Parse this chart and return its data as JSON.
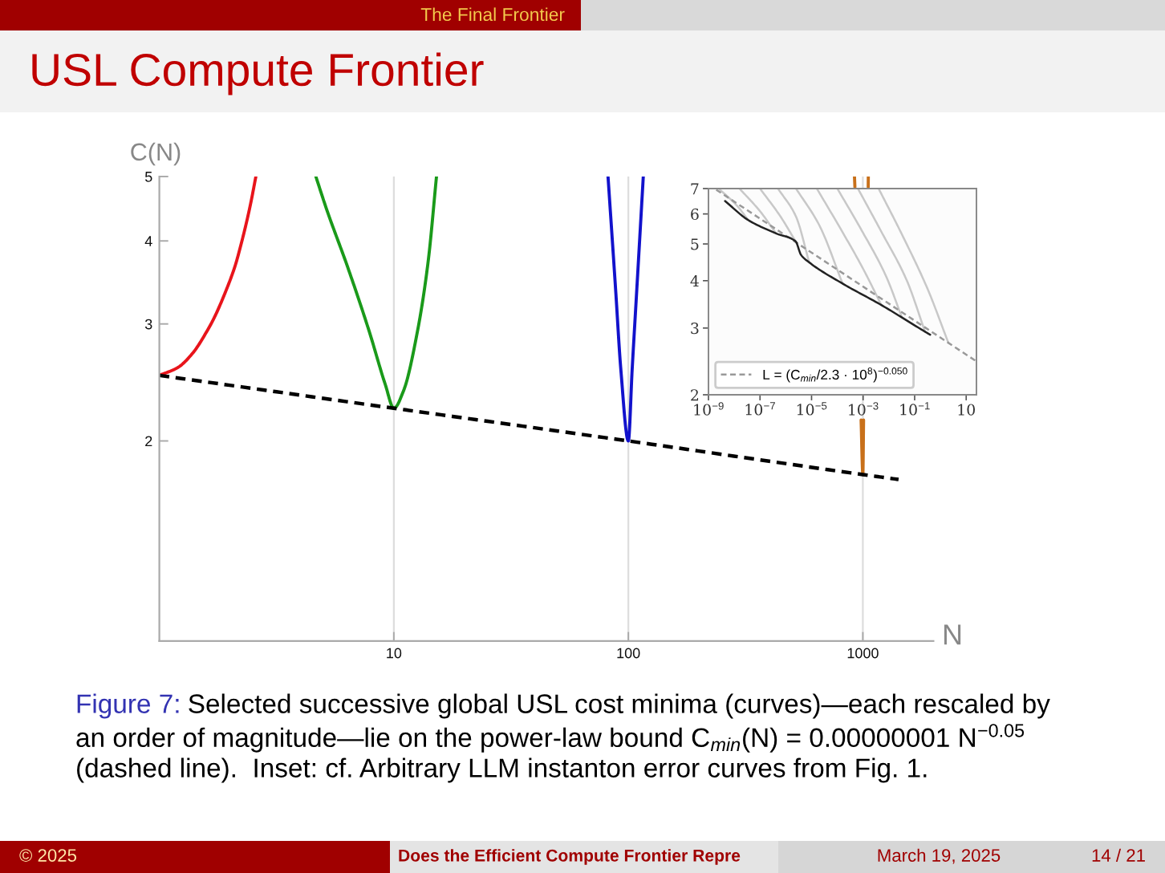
{
  "chart_data": [
    {
      "type": "line",
      "title": "USL Compute Frontier",
      "xlabel": "N",
      "ylabel": "C(N)",
      "log": "xy",
      "xlim": [
        1,
        2000
      ],
      "ylim": [
        1,
        5
      ],
      "xticks": [
        10,
        100,
        1000
      ],
      "yticks": [
        2,
        3,
        4,
        5
      ],
      "grid": "x",
      "series": [
        {
          "color": "#e8141b",
          "x": [
            1,
            1.2,
            1.386,
            1.6,
            1.71,
            1.9,
            2.11,
            2.2,
            2.34,
            2.45,
            2.58
          ],
          "values": [
            2.51,
            2.58,
            2.71,
            2.93,
            3.06,
            3.33,
            3.68,
            3.88,
            4.23,
            4.55,
            5
          ]
        },
        {
          "color": "#1a9a1a",
          "x": [
            4.65,
            5.16,
            6.36,
            7.86,
            9.2,
            10,
            11,
            12.6,
            14,
            15.2
          ],
          "values": [
            5,
            4.47,
            3.65,
            2.92,
            2.43,
            2.24,
            2.38,
            2.92,
            3.72,
            5
          ]
        },
        {
          "color": "#1212cc",
          "x": [
            81.9,
            88.2,
            92.9,
            100,
            103.8,
            108.7,
            115.8
          ],
          "values": [
            5,
            3.39,
            2.56,
            2,
            2.56,
            3.39,
            5
          ]
        },
        {
          "color": "#c8701a",
          "x": [
            921,
            925,
            950,
            983,
            1000,
            1007,
            1030,
            1054,
            1055
          ],
          "values": [
            5,
            4.82,
            null,
            2.15,
            1.78,
            2.15,
            null,
            4.82,
            5
          ]
        },
        {
          "color": "#000000",
          "line_style": "dashed",
          "x": [
            1,
            10,
            100,
            1000,
            1420
          ],
          "values": [
            2.51,
            2.24,
            2,
            1.78,
            1.75
          ]
        }
      ],
      "annotations": [
        "The Final Frontier",
        "Figure 7:",
        "Selected successive global USL cost minima (curves)—each rescaled by",
        "an order of magnitude—lie on the power-law bound C$_{min}$(N) = 0.00000001 N$^{−0.05}$",
        "(dashed line).  Inset: cf. Arbitrary LLM instanton error curves from Fig. 1.",
        "© 2025",
        "Does the Efficient Compute Frontier Repre",
        "March 19, 2025",
        "14 / 21"
      ]
    },
    {
      "type": "line",
      "log": "xy",
      "xlim": [
        1e-09,
        25
      ],
      "ylim": [
        2,
        7
      ],
      "xticks": [
        {
          "value": 1e-09,
          "label": "10$^{−9}$"
        },
        {
          "value": 1e-07,
          "label": "10$^{−7}$"
        },
        {
          "value": 1e-05,
          "label": "10$^{−5}$"
        },
        {
          "value": 0.001,
          "label": "10$^{−3}$"
        },
        {
          "value": 0.1,
          "label": "10$^{−1}$"
        },
        10
      ],
      "yticks": [
        2,
        3,
        4,
        5,
        6,
        7
      ],
      "legend": "bottom left",
      "series": [
        {
          "color": "#c8c8c8",
          "x": [
            2.5e-09,
            1.3e-08,
            3.5e-08
          ],
          "values": [
            7,
            6.3,
            5.78
          ]
        },
        {
          "color": "#c8c8c8",
          "x": [
            1.6e-08,
            1e-07,
            4.2e-07
          ],
          "values": [
            7,
            6.1,
            5.33
          ]
        },
        {
          "color": "#c8c8c8",
          "x": [
            1e-07,
            6.3e-07,
            2.4e-06
          ],
          "values": [
            7,
            5.9,
            5.08
          ]
        },
        {
          "color": "#c8c8c8",
          "x": [
            5e-07,
            2.5e-06,
            8.1e-06
          ],
          "values": [
            7,
            5.9,
            4.47
          ]
        },
        {
          "color": "#c8c8c8",
          "x": [
            2.5e-06,
            2e-05,
            0.00016
          ],
          "values": [
            7,
            5.6,
            3.93
          ]
        },
        {
          "color": "#c8c8c8",
          "x": [
            1.6e-05,
            0.00013,
            0.001,
            0.0051
          ],
          "values": [
            7,
            5.5,
            4.3,
            3.45
          ]
        },
        {
          "color": "#c8c8c8",
          "x": [
            0.0001,
            0.00079,
            0.0079,
            0.032
          ],
          "values": [
            7,
            5.5,
            4.1,
            3.2
          ]
        },
        {
          "color": "#c8c8c8",
          "x": [
            0.00063,
            0.005,
            0.05,
            0.25
          ],
          "values": [
            7,
            5.4,
            4,
            2.94
          ]
        },
        {
          "color": "#c8c8c8",
          "x": [
            0.004,
            0.032,
            0.32,
            2
          ],
          "values": [
            7,
            5.3,
            3.8,
            2.75
          ]
        },
        {
          "name": "L = (C$_{min}$/2.3 · 10$^{8}$)$^{−0.050}$",
          "color": "#999999",
          "line_style": "dashed",
          "x": [
            2e-09,
            25
          ],
          "values": [
            6.95,
            2.45
          ]
        },
        {
          "color": "#222222",
          "x": [
            4.4e-09,
            3.5e-08,
            4.2e-07,
            2.4e-06,
            3.9e-06,
            8.1e-06,
            0.00016,
            0.0051,
            0.16,
            0.4
          ],
          "values": [
            6.49,
            5.78,
            5.33,
            5.08,
            4.68,
            4.47,
            3.93,
            3.45,
            2.99,
            2.88
          ]
        }
      ]
    }
  ]
}
